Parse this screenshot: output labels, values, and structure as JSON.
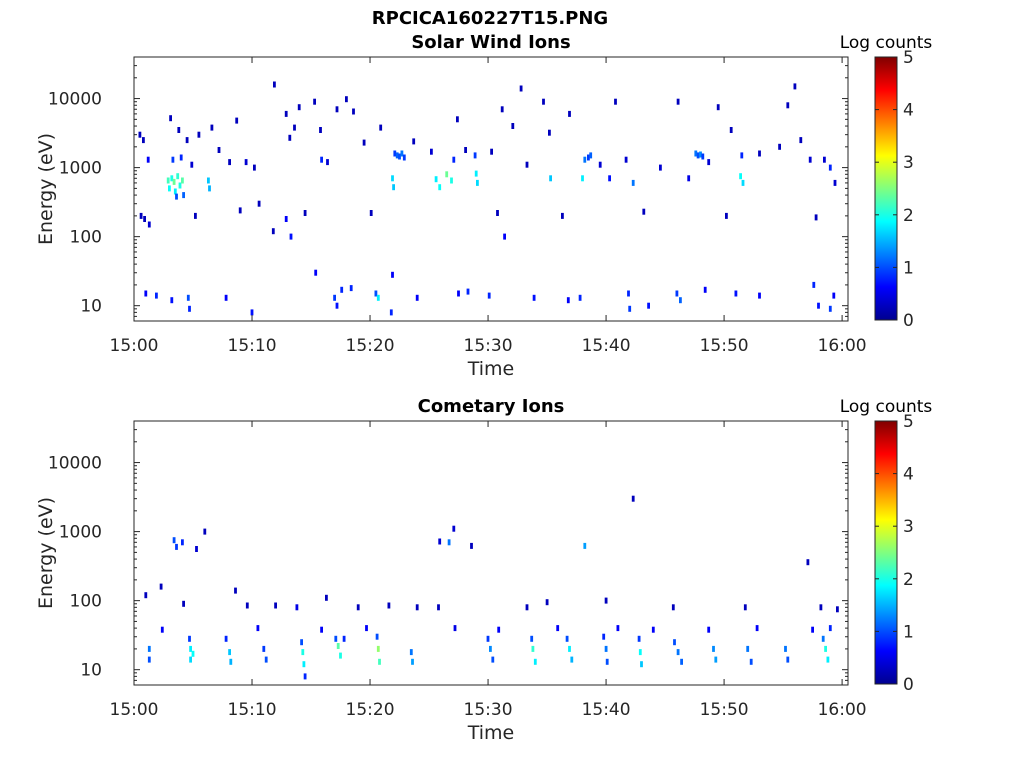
{
  "figure": {
    "title": "RPCICA160227T15.PNG"
  },
  "chart_data": [
    {
      "type": "heatmap",
      "title": "Solar Wind Ions",
      "xlabel": "Time",
      "ylabel": "Energy (eV)",
      "x_ticks": [
        "15:00",
        "15:10",
        "15:20",
        "15:30",
        "15:40",
        "15:50",
        "16:00"
      ],
      "x_range_minutes": [
        0,
        60.5
      ],
      "y_scale": "log",
      "y_ticks": [
        10,
        100,
        1000,
        10000
      ],
      "y_tick_labels": [
        "10",
        "100",
        "1000",
        "10000"
      ],
      "y_range": [
        6,
        40000
      ],
      "colorbar": {
        "title": "Log counts",
        "range": [
          0,
          5
        ],
        "ticks": [
          "0",
          "1",
          "2",
          "3",
          "4",
          "5"
        ],
        "colormap": "jet"
      },
      "cells": [
        [
          0.5,
          3000,
          0.3
        ],
        [
          0.8,
          2500,
          0.3
        ],
        [
          0.6,
          200,
          0.3
        ],
        [
          0.9,
          180,
          0.3
        ],
        [
          1.3,
          150,
          0.4
        ],
        [
          1.2,
          1300,
          0.6
        ],
        [
          2.9,
          650,
          2.2
        ],
        [
          3.0,
          500,
          1.9
        ],
        [
          3.2,
          700,
          2.0
        ],
        [
          3.4,
          620,
          2.4
        ],
        [
          3.5,
          450,
          1.8
        ],
        [
          3.7,
          750,
          2.1
        ],
        [
          3.9,
          550,
          2.0
        ],
        [
          4.1,
          650,
          2.3
        ],
        [
          3.3,
          1300,
          0.9
        ],
        [
          4.0,
          1400,
          0.8
        ],
        [
          3.6,
          380,
          1.0
        ],
        [
          4.2,
          400,
          1.1
        ],
        [
          3.1,
          5200,
          0.3
        ],
        [
          3.8,
          3500,
          0.3
        ],
        [
          4.5,
          2500,
          0.3
        ],
        [
          4.9,
          1100,
          0.4
        ],
        [
          5.5,
          3000,
          0.3
        ],
        [
          6.3,
          650,
          1.6
        ],
        [
          6.4,
          500,
          1.5
        ],
        [
          6.6,
          3800,
          0.3
        ],
        [
          7.2,
          1800,
          0.3
        ],
        [
          8.1,
          1200,
          0.3
        ],
        [
          8.7,
          4800,
          0.3
        ],
        [
          9.5,
          1200,
          0.4
        ],
        [
          10.2,
          1000,
          0.3
        ],
        [
          10.6,
          300,
          0.3
        ],
        [
          11.8,
          120,
          0.3
        ],
        [
          11.9,
          16000,
          0.3
        ],
        [
          12.9,
          6000,
          0.3
        ],
        [
          13.2,
          2700,
          0.3
        ],
        [
          13.6,
          3800,
          0.3
        ],
        [
          14.0,
          7500,
          0.3
        ],
        [
          15.3,
          9000,
          0.3
        ],
        [
          15.8,
          3500,
          0.3
        ],
        [
          15.9,
          1300,
          0.8
        ],
        [
          16.4,
          1200,
          0.4
        ],
        [
          17.2,
          7000,
          0.3
        ],
        [
          18.0,
          9800,
          0.3
        ],
        [
          18.6,
          6500,
          0.3
        ],
        [
          19.5,
          2300,
          0.3
        ],
        [
          20.9,
          3800,
          0.3
        ],
        [
          22.1,
          1600,
          0.9
        ],
        [
          22.3,
          1500,
          1.1
        ],
        [
          22.5,
          1450,
          1.0
        ],
        [
          22.7,
          1600,
          1.2
        ],
        [
          22.9,
          1400,
          0.9
        ],
        [
          21.9,
          700,
          1.7
        ],
        [
          22.0,
          520,
          1.6
        ],
        [
          23.7,
          2400,
          0.3
        ],
        [
          25.2,
          1700,
          0.4
        ],
        [
          25.6,
          680,
          1.8
        ],
        [
          25.9,
          520,
          1.9
        ],
        [
          26.5,
          800,
          2.4
        ],
        [
          26.9,
          650,
          2.0
        ],
        [
          27.1,
          1300,
          0.8
        ],
        [
          27.4,
          5000,
          0.3
        ],
        [
          28.1,
          1800,
          0.3
        ],
        [
          28.9,
          1500,
          0.9
        ],
        [
          29.0,
          820,
          1.8
        ],
        [
          29.1,
          600,
          1.7
        ],
        [
          30.3,
          1700,
          0.3
        ],
        [
          31.2,
          7000,
          0.3
        ],
        [
          32.1,
          4000,
          0.3
        ],
        [
          32.8,
          14000,
          0.3
        ],
        [
          33.3,
          1100,
          0.3
        ],
        [
          34.7,
          9000,
          0.3
        ],
        [
          35.2,
          3200,
          0.3
        ],
        [
          35.3,
          700,
          1.6
        ],
        [
          36.9,
          6000,
          0.3
        ],
        [
          38.0,
          700,
          1.8
        ],
        [
          38.2,
          1300,
          1.2
        ],
        [
          38.5,
          1400,
          0.9
        ],
        [
          38.7,
          1500,
          1.1
        ],
        [
          39.5,
          1100,
          0.4
        ],
        [
          40.3,
          700,
          0.7
        ],
        [
          40.8,
          9000,
          0.3
        ],
        [
          41.7,
          1300,
          0.4
        ],
        [
          42.3,
          600,
          1.2
        ],
        [
          44.6,
          1000,
          0.4
        ],
        [
          46.1,
          9000,
          0.3
        ],
        [
          47.0,
          700,
          0.5
        ],
        [
          47.6,
          1600,
          1.2
        ],
        [
          47.8,
          1500,
          1.0
        ],
        [
          48.0,
          1550,
          1.3
        ],
        [
          48.2,
          1450,
          0.9
        ],
        [
          48.7,
          1200,
          0.4
        ],
        [
          49.5,
          7500,
          0.3
        ],
        [
          50.6,
          3500,
          0.3
        ],
        [
          51.4,
          750,
          1.9
        ],
        [
          51.6,
          600,
          1.7
        ],
        [
          51.5,
          1500,
          0.8
        ],
        [
          53.0,
          1600,
          0.3
        ],
        [
          54.7,
          2000,
          0.3
        ],
        [
          55.4,
          8000,
          0.3
        ],
        [
          56.0,
          15000,
          0.3
        ],
        [
          56.5,
          2500,
          0.3
        ],
        [
          57.3,
          1300,
          0.4
        ],
        [
          58.5,
          1300,
          0.4
        ],
        [
          59.0,
          1000,
          0.8
        ],
        [
          59.4,
          600,
          0.4
        ],
        [
          5.2,
          200,
          0.3
        ],
        [
          9.0,
          240,
          0.3
        ],
        [
          14.5,
          220,
          0.3
        ],
        [
          20.1,
          220,
          0.3
        ],
        [
          30.8,
          220,
          0.3
        ],
        [
          36.3,
          200,
          0.3
        ],
        [
          43.2,
          230,
          0.3
        ],
        [
          50.2,
          200,
          0.3
        ],
        [
          57.8,
          190,
          0.3
        ],
        [
          1.0,
          15,
          0.6
        ],
        [
          1.9,
          14,
          0.8
        ],
        [
          3.2,
          12,
          0.7
        ],
        [
          4.6,
          13,
          1.0
        ],
        [
          4.7,
          9,
          0.8
        ],
        [
          7.8,
          13,
          0.6
        ],
        [
          10.0,
          8,
          0.7
        ],
        [
          12.9,
          180,
          0.6
        ],
        [
          13.3,
          100,
          0.7
        ],
        [
          15.4,
          30,
          0.6
        ],
        [
          17.0,
          13,
          0.9
        ],
        [
          17.2,
          10,
          0.7
        ],
        [
          17.6,
          17,
          0.8
        ],
        [
          18.4,
          18,
          0.8
        ],
        [
          20.5,
          15,
          1.0
        ],
        [
          20.7,
          13,
          1.8
        ],
        [
          21.9,
          28,
          0.6
        ],
        [
          21.8,
          8,
          0.8
        ],
        [
          24.0,
          13,
          0.6
        ],
        [
          27.5,
          15,
          0.6
        ],
        [
          28.3,
          16,
          0.8
        ],
        [
          30.1,
          14,
          0.8
        ],
        [
          31.4,
          100,
          0.6
        ],
        [
          33.9,
          13,
          0.7
        ],
        [
          36.8,
          12,
          0.6
        ],
        [
          37.8,
          13,
          0.8
        ],
        [
          41.9,
          15,
          0.8
        ],
        [
          42.0,
          9,
          0.9
        ],
        [
          43.6,
          10,
          0.7
        ],
        [
          46.0,
          15,
          0.9
        ],
        [
          46.3,
          12,
          1.1
        ],
        [
          48.4,
          17,
          0.6
        ],
        [
          51.0,
          15,
          0.7
        ],
        [
          53.0,
          14,
          0.6
        ],
        [
          57.6,
          20,
          0.8
        ],
        [
          58.0,
          10,
          0.7
        ],
        [
          59.0,
          9,
          0.9
        ],
        [
          59.3,
          14,
          0.6
        ]
      ]
    },
    {
      "type": "heatmap",
      "title": "Cometary Ions",
      "xlabel": "Time",
      "ylabel": "Energy (eV)",
      "x_ticks": [
        "15:00",
        "15:10",
        "15:20",
        "15:30",
        "15:40",
        "15:50",
        "16:00"
      ],
      "x_range_minutes": [
        0,
        60.5
      ],
      "y_scale": "log",
      "y_ticks": [
        10,
        100,
        1000,
        10000
      ],
      "y_tick_labels": [
        "10",
        "100",
        "1000",
        "10000"
      ],
      "y_range": [
        6,
        40000
      ],
      "colorbar": {
        "title": "Log counts",
        "range": [
          0,
          5
        ],
        "ticks": [
          "0",
          "1",
          "2",
          "3",
          "4",
          "5"
        ],
        "colormap": "jet"
      },
      "cells": [
        [
          1.3,
          20,
          1.2
        ],
        [
          1.3,
          14,
          1.0
        ],
        [
          4.7,
          28,
          0.9
        ],
        [
          4.8,
          20,
          1.8
        ],
        [
          4.8,
          14,
          1.7
        ],
        [
          5.0,
          17,
          1.9
        ],
        [
          7.8,
          28,
          0.8
        ],
        [
          8.1,
          18,
          1.6
        ],
        [
          8.2,
          13,
          1.5
        ],
        [
          11.0,
          20,
          0.9
        ],
        [
          11.2,
          14,
          1.0
        ],
        [
          14.2,
          25,
          1.0
        ],
        [
          14.3,
          18,
          2.0
        ],
        [
          14.4,
          12,
          1.8
        ],
        [
          14.5,
          8,
          0.8
        ],
        [
          17.1,
          28,
          1.0
        ],
        [
          17.3,
          22,
          2.3
        ],
        [
          17.5,
          16,
          2.0
        ],
        [
          17.8,
          28,
          0.8
        ],
        [
          20.6,
          30,
          1.0
        ],
        [
          20.7,
          20,
          2.6
        ],
        [
          20.8,
          13,
          2.2
        ],
        [
          23.5,
          18,
          1.2
        ],
        [
          23.6,
          13,
          1.4
        ],
        [
          30.0,
          28,
          0.9
        ],
        [
          30.2,
          20,
          1.3
        ],
        [
          30.4,
          14,
          1.0
        ],
        [
          33.7,
          28,
          1.0
        ],
        [
          33.8,
          20,
          2.1
        ],
        [
          34.0,
          13,
          1.8
        ],
        [
          36.7,
          28,
          1.0
        ],
        [
          36.9,
          20,
          1.8
        ],
        [
          37.1,
          14,
          1.5
        ],
        [
          39.8,
          30,
          0.8
        ],
        [
          40.0,
          20,
          1.2
        ],
        [
          40.1,
          13,
          1.0
        ],
        [
          42.8,
          28,
          0.9
        ],
        [
          42.9,
          18,
          1.9
        ],
        [
          43.0,
          12,
          1.6
        ],
        [
          45.8,
          25,
          1.0
        ],
        [
          46.1,
          18,
          1.2
        ],
        [
          46.4,
          13,
          1.1
        ],
        [
          49.1,
          20,
          1.3
        ],
        [
          49.3,
          14,
          1.4
        ],
        [
          52.0,
          20,
          1.2
        ],
        [
          52.3,
          13,
          1.0
        ],
        [
          55.2,
          20,
          1.2
        ],
        [
          55.4,
          14,
          1.0
        ],
        [
          58.4,
          28,
          1.2
        ],
        [
          58.6,
          20,
          2.0
        ],
        [
          58.8,
          14,
          1.8
        ],
        [
          59.0,
          40,
          0.8
        ],
        [
          3.4,
          750,
          1.0
        ],
        [
          3.6,
          600,
          0.9
        ],
        [
          4.1,
          700,
          0.8
        ],
        [
          5.3,
          560,
          0.4
        ],
        [
          6.0,
          1000,
          0.3
        ],
        [
          25.9,
          720,
          0.4
        ],
        [
          26.7,
          700,
          1.2
        ],
        [
          27.1,
          1100,
          0.4
        ],
        [
          28.6,
          620,
          0.3
        ],
        [
          38.2,
          620,
          1.4
        ],
        [
          42.3,
          3000,
          0.3
        ],
        [
          57.1,
          360,
          0.3
        ],
        [
          1.0,
          120,
          0.3
        ],
        [
          2.3,
          160,
          0.3
        ],
        [
          4.2,
          90,
          0.3
        ],
        [
          8.6,
          140,
          0.3
        ],
        [
          9.6,
          85,
          0.3
        ],
        [
          12.0,
          85,
          0.3
        ],
        [
          13.8,
          80,
          0.5
        ],
        [
          16.3,
          110,
          0.3
        ],
        [
          19.0,
          80,
          0.3
        ],
        [
          21.6,
          85,
          0.3
        ],
        [
          24.0,
          80,
          0.3
        ],
        [
          25.8,
          80,
          0.3
        ],
        [
          33.3,
          80,
          0.3
        ],
        [
          35.0,
          95,
          0.3
        ],
        [
          40.0,
          100,
          0.3
        ],
        [
          45.7,
          80,
          0.3
        ],
        [
          51.8,
          80,
          0.3
        ],
        [
          58.2,
          80,
          0.3
        ],
        [
          59.6,
          75,
          0.3
        ],
        [
          2.4,
          38,
          0.6
        ],
        [
          10.5,
          40,
          0.6
        ],
        [
          15.9,
          38,
          0.6
        ],
        [
          19.7,
          40,
          0.6
        ],
        [
          27.2,
          40,
          0.5
        ],
        [
          30.9,
          38,
          0.6
        ],
        [
          35.9,
          40,
          0.6
        ],
        [
          41.0,
          40,
          0.6
        ],
        [
          44.0,
          38,
          0.6
        ],
        [
          48.7,
          38,
          0.6
        ],
        [
          52.8,
          40,
          0.6
        ],
        [
          57.5,
          38,
          0.6
        ]
      ]
    }
  ]
}
